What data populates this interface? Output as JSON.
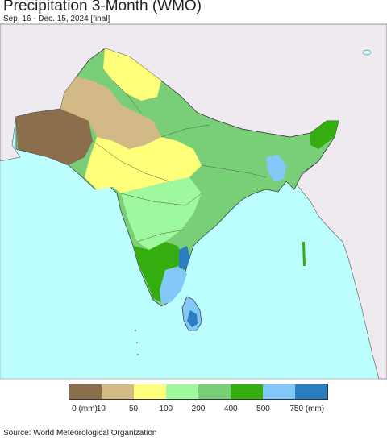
{
  "title": "Precipitation 3-Month (WMO)",
  "subtitle": "Sep. 16 - Dec. 15, 2024 [final]",
  "source": "Source: World Meteorological Organization",
  "colors": {
    "ocean": "#bdfefe",
    "outside_land": "#efeaf0",
    "border": "#333333"
  },
  "legend": {
    "swatches": [
      "#8b6e4b",
      "#d2b985",
      "#ffff7a",
      "#9ef99e",
      "#78cf78",
      "#34ae0e",
      "#82c8f8",
      "#2a7dbf"
    ],
    "tick_labels": [
      "0 (mm)",
      "10",
      "50",
      "100",
      "200",
      "400",
      "500",
      "750 (mm)"
    ]
  }
}
